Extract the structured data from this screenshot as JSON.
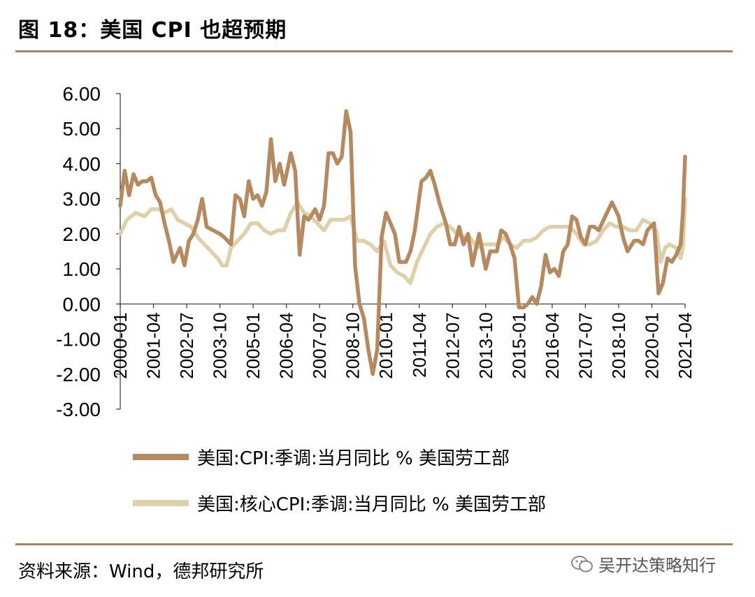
{
  "header": {
    "title": "图 18：美国 CPI 也超预期"
  },
  "footer": {
    "source": "资料来源：Wind，德邦研究所",
    "watermark": "吴开达策略知行"
  },
  "chart_data": {
    "type": "line",
    "title": "图 18：美国 CPI 也超预期",
    "xlabel": "",
    "ylabel": "",
    "ylim": [
      -3,
      6
    ],
    "yticks": [
      "6.00",
      "5.00",
      "4.00",
      "3.00",
      "2.00",
      "1.00",
      "0.00",
      "-1.00",
      "-2.00",
      "-3.00"
    ],
    "xticks": [
      "2000-01",
      "2001-04",
      "2002-07",
      "2003-10",
      "2005-01",
      "2006-04",
      "2007-07",
      "2008-10",
      "2010-01",
      "2011-04",
      "2012-07",
      "2013-10",
      "2015-01",
      "2016-04",
      "2017-07",
      "2018-10",
      "2020-01",
      "2021-04"
    ],
    "series": [
      {
        "name": "美国:CPI:季调:当月同比 % 美国劳工部",
        "color": "#b58a61",
        "points": [
          [
            "2000-01",
            2.8
          ],
          [
            "2000-03",
            3.8
          ],
          [
            "2000-05",
            3.1
          ],
          [
            "2000-07",
            3.7
          ],
          [
            "2000-09",
            3.4
          ],
          [
            "2000-11",
            3.5
          ],
          [
            "2001-01",
            3.5
          ],
          [
            "2001-03",
            3.6
          ],
          [
            "2001-05",
            3.1
          ],
          [
            "2001-07",
            2.9
          ],
          [
            "2001-09",
            2.3
          ],
          [
            "2001-11",
            1.8
          ],
          [
            "2002-01",
            1.2
          ],
          [
            "2002-04",
            1.6
          ],
          [
            "2002-06",
            1.1
          ],
          [
            "2002-08",
            1.8
          ],
          [
            "2002-10",
            2.0
          ],
          [
            "2002-12",
            2.4
          ],
          [
            "2003-02",
            3.0
          ],
          [
            "2003-04",
            2.2
          ],
          [
            "2003-07",
            2.1
          ],
          [
            "2003-10",
            2.0
          ],
          [
            "2003-12",
            1.9
          ],
          [
            "2004-03",
            1.7
          ],
          [
            "2004-05",
            3.1
          ],
          [
            "2004-07",
            3.0
          ],
          [
            "2004-09",
            2.5
          ],
          [
            "2004-11",
            3.5
          ],
          [
            "2005-01",
            3.0
          ],
          [
            "2005-03",
            3.1
          ],
          [
            "2005-05",
            2.8
          ],
          [
            "2005-07",
            3.2
          ],
          [
            "2005-09",
            4.7
          ],
          [
            "2005-11",
            3.5
          ],
          [
            "2006-01",
            4.0
          ],
          [
            "2006-03",
            3.4
          ],
          [
            "2006-06",
            4.3
          ],
          [
            "2006-08",
            3.8
          ],
          [
            "2006-10",
            1.4
          ],
          [
            "2006-12",
            2.5
          ],
          [
            "2007-02",
            2.4
          ],
          [
            "2007-05",
            2.7
          ],
          [
            "2007-07",
            2.4
          ],
          [
            "2007-09",
            2.8
          ],
          [
            "2007-11",
            4.3
          ],
          [
            "2008-01",
            4.3
          ],
          [
            "2008-03",
            4.0
          ],
          [
            "2008-05",
            4.2
          ],
          [
            "2008-07",
            5.5
          ],
          [
            "2008-09",
            4.9
          ],
          [
            "2008-11",
            1.1
          ],
          [
            "2009-01",
            0.0
          ],
          [
            "2009-03",
            -0.4
          ],
          [
            "2009-05",
            -1.3
          ],
          [
            "2009-07",
            -2.0
          ],
          [
            "2009-09",
            -1.3
          ],
          [
            "2009-11",
            1.9
          ],
          [
            "2010-01",
            2.6
          ],
          [
            "2010-03",
            2.3
          ],
          [
            "2010-05",
            2.0
          ],
          [
            "2010-07",
            1.2
          ],
          [
            "2010-10",
            1.2
          ],
          [
            "2010-12",
            1.5
          ],
          [
            "2011-02",
            2.1
          ],
          [
            "2011-05",
            3.5
          ],
          [
            "2011-07",
            3.6
          ],
          [
            "2011-09",
            3.8
          ],
          [
            "2011-11",
            3.4
          ],
          [
            "2012-01",
            2.9
          ],
          [
            "2012-04",
            2.3
          ],
          [
            "2012-06",
            1.7
          ],
          [
            "2012-08",
            1.7
          ],
          [
            "2012-10",
            2.2
          ],
          [
            "2012-12",
            1.7
          ],
          [
            "2013-02",
            2.0
          ],
          [
            "2013-04",
            1.1
          ],
          [
            "2013-07",
            2.0
          ],
          [
            "2013-10",
            1.0
          ],
          [
            "2013-12",
            1.5
          ],
          [
            "2014-03",
            1.5
          ],
          [
            "2014-05",
            2.1
          ],
          [
            "2014-07",
            2.0
          ],
          [
            "2014-09",
            1.7
          ],
          [
            "2014-11",
            1.3
          ],
          [
            "2015-01",
            -0.1
          ],
          [
            "2015-03",
            -0.1
          ],
          [
            "2015-05",
            0.0
          ],
          [
            "2015-07",
            0.2
          ],
          [
            "2015-09",
            0.0
          ],
          [
            "2015-11",
            0.5
          ],
          [
            "2016-01",
            1.4
          ],
          [
            "2016-03",
            0.9
          ],
          [
            "2016-05",
            1.0
          ],
          [
            "2016-07",
            0.8
          ],
          [
            "2016-09",
            1.5
          ],
          [
            "2016-11",
            1.7
          ],
          [
            "2017-01",
            2.5
          ],
          [
            "2017-03",
            2.4
          ],
          [
            "2017-05",
            1.9
          ],
          [
            "2017-07",
            1.7
          ],
          [
            "2017-09",
            2.2
          ],
          [
            "2017-11",
            2.2
          ],
          [
            "2018-01",
            2.1
          ],
          [
            "2018-04",
            2.5
          ],
          [
            "2018-07",
            2.9
          ],
          [
            "2018-10",
            2.5
          ],
          [
            "2018-12",
            1.9
          ],
          [
            "2019-02",
            1.5
          ],
          [
            "2019-05",
            1.8
          ],
          [
            "2019-07",
            1.8
          ],
          [
            "2019-09",
            1.7
          ],
          [
            "2019-11",
            2.1
          ],
          [
            "2020-02",
            2.3
          ],
          [
            "2020-04",
            0.3
          ],
          [
            "2020-06",
            0.6
          ],
          [
            "2020-08",
            1.3
          ],
          [
            "2020-10",
            1.2
          ],
          [
            "2020-12",
            1.4
          ],
          [
            "2021-02",
            1.7
          ],
          [
            "2021-03",
            2.6
          ],
          [
            "2021-04",
            4.2
          ]
        ]
      },
      {
        "name": "美国:核心CPI:季调:当月同比 % 美国劳工部",
        "color": "#ddd0ab",
        "points": [
          [
            "2000-01",
            2.0
          ],
          [
            "2000-04",
            2.4
          ],
          [
            "2000-08",
            2.6
          ],
          [
            "2000-12",
            2.5
          ],
          [
            "2001-03",
            2.7
          ],
          [
            "2001-06",
            2.7
          ],
          [
            "2001-09",
            2.6
          ],
          [
            "2001-12",
            2.7
          ],
          [
            "2002-03",
            2.4
          ],
          [
            "2002-06",
            2.3
          ],
          [
            "2002-09",
            2.2
          ],
          [
            "2002-12",
            1.9
          ],
          [
            "2003-03",
            1.7
          ],
          [
            "2003-06",
            1.5
          ],
          [
            "2003-09",
            1.3
          ],
          [
            "2003-11",
            1.1
          ],
          [
            "2004-01",
            1.1
          ],
          [
            "2004-03",
            1.6
          ],
          [
            "2004-06",
            1.8
          ],
          [
            "2004-09",
            2.0
          ],
          [
            "2004-12",
            2.3
          ],
          [
            "2005-03",
            2.3
          ],
          [
            "2005-06",
            2.1
          ],
          [
            "2005-09",
            2.0
          ],
          [
            "2005-12",
            2.1
          ],
          [
            "2006-03",
            2.1
          ],
          [
            "2006-06",
            2.6
          ],
          [
            "2006-09",
            2.9
          ],
          [
            "2006-12",
            2.6
          ],
          [
            "2007-03",
            2.5
          ],
          [
            "2007-06",
            2.3
          ],
          [
            "2007-09",
            2.1
          ],
          [
            "2007-12",
            2.4
          ],
          [
            "2008-03",
            2.4
          ],
          [
            "2008-06",
            2.4
          ],
          [
            "2008-09",
            2.5
          ],
          [
            "2008-12",
            1.8
          ],
          [
            "2009-03",
            1.8
          ],
          [
            "2009-06",
            1.7
          ],
          [
            "2009-09",
            1.5
          ],
          [
            "2009-12",
            1.8
          ],
          [
            "2010-03",
            1.1
          ],
          [
            "2010-06",
            0.9
          ],
          [
            "2010-09",
            0.8
          ],
          [
            "2010-12",
            0.6
          ],
          [
            "2011-03",
            1.2
          ],
          [
            "2011-06",
            1.6
          ],
          [
            "2011-09",
            2.0
          ],
          [
            "2011-12",
            2.2
          ],
          [
            "2012-03",
            2.3
          ],
          [
            "2012-06",
            2.2
          ],
          [
            "2012-09",
            2.0
          ],
          [
            "2012-12",
            1.9
          ],
          [
            "2013-03",
            1.9
          ],
          [
            "2013-06",
            1.6
          ],
          [
            "2013-09",
            1.7
          ],
          [
            "2013-12",
            1.7
          ],
          [
            "2014-03",
            1.7
          ],
          [
            "2014-06",
            1.9
          ],
          [
            "2014-09",
            1.7
          ],
          [
            "2014-12",
            1.6
          ],
          [
            "2015-03",
            1.8
          ],
          [
            "2015-06",
            1.8
          ],
          [
            "2015-09",
            1.9
          ],
          [
            "2015-12",
            2.1
          ],
          [
            "2016-03",
            2.2
          ],
          [
            "2016-06",
            2.2
          ],
          [
            "2016-09",
            2.2
          ],
          [
            "2016-12",
            2.2
          ],
          [
            "2017-03",
            2.0
          ],
          [
            "2017-06",
            1.7
          ],
          [
            "2017-09",
            1.7
          ],
          [
            "2017-12",
            1.8
          ],
          [
            "2018-03",
            2.1
          ],
          [
            "2018-06",
            2.3
          ],
          [
            "2018-09",
            2.2
          ],
          [
            "2018-12",
            2.2
          ],
          [
            "2019-03",
            2.1
          ],
          [
            "2019-06",
            2.1
          ],
          [
            "2019-09",
            2.4
          ],
          [
            "2019-12",
            2.3
          ],
          [
            "2020-03",
            2.1
          ],
          [
            "2020-05",
            1.2
          ],
          [
            "2020-07",
            1.6
          ],
          [
            "2020-09",
            1.7
          ],
          [
            "2020-12",
            1.6
          ],
          [
            "2021-02",
            1.3
          ],
          [
            "2021-03",
            1.6
          ],
          [
            "2021-04",
            3.0
          ]
        ]
      }
    ]
  }
}
